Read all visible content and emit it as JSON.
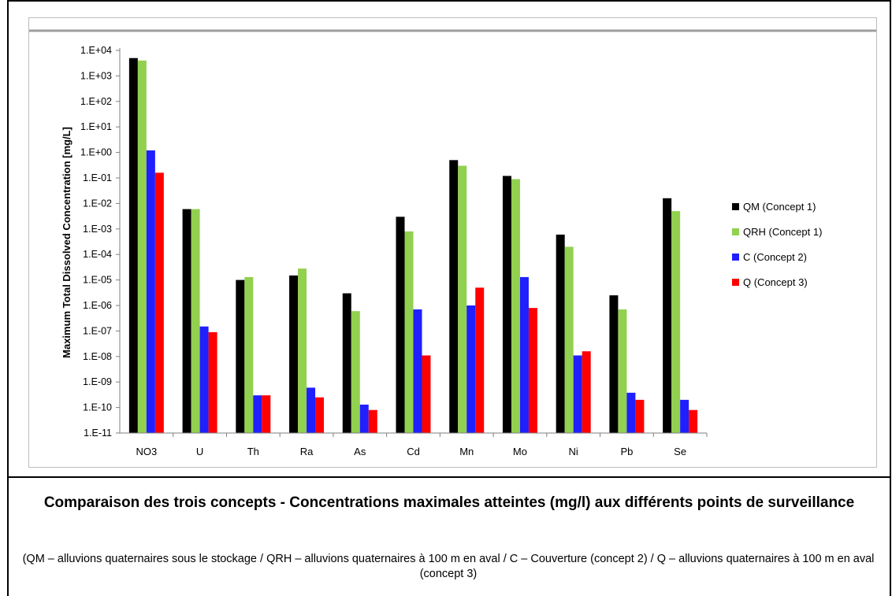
{
  "chart_data": {
    "type": "bar",
    "scale": "log",
    "ylabel": "Maximum Total Dissolved Concentration [mg/L]",
    "ylim": [
      1e-11,
      10000.0
    ],
    "yticks": [
      "1.E+04",
      "1.E+03",
      "1.E+02",
      "1.E+01",
      "1.E+00",
      "1.E-01",
      "1.E-02",
      "1.E-03",
      "1.E-04",
      "1.E-05",
      "1.E-06",
      "1.E-07",
      "1.E-08",
      "1.E-09",
      "1.E-10",
      "1.E-11"
    ],
    "categories": [
      "NO3",
      "U",
      "Th",
      "Ra",
      "As",
      "Cd",
      "Mn",
      "Mo",
      "Ni",
      "Pb",
      "Se"
    ],
    "legend_position": "right",
    "grid": false,
    "series": [
      {
        "name": "QM (Concept 1)",
        "color": "#000000",
        "values": [
          5000,
          0.006,
          1e-05,
          1.5e-05,
          3e-06,
          0.003,
          0.5,
          0.12,
          0.0006,
          2.5e-06,
          0.016
        ]
      },
      {
        "name": "QRH (Concept 1)",
        "color": "#92d050",
        "values": [
          4000,
          0.006,
          1.3e-05,
          2.8e-05,
          6e-07,
          0.0008,
          0.3,
          0.09,
          0.0002,
          7e-07,
          0.005
        ]
      },
      {
        "name": "C (Concept 2)",
        "color": "#1f1fff",
        "values": [
          1.2,
          1.5e-07,
          3e-10,
          6e-10,
          1.3e-10,
          7e-07,
          1e-06,
          1.3e-05,
          1.1e-08,
          3.8e-10,
          2e-10
        ]
      },
      {
        "name": "Q (Concept 3)",
        "color": "#ff0000",
        "values": [
          0.16,
          9e-08,
          3e-10,
          2.5e-10,
          8e-11,
          1.1e-08,
          5e-06,
          8e-07,
          1.6e-08,
          2e-10,
          8e-11
        ]
      }
    ]
  },
  "caption": {
    "title": "Comparaison des trois concepts - Concentrations maximales atteintes (mg/l) aux différents points de surveillance",
    "note": "(QM – alluvions quaternaires sous le stockage / QRH – alluvions quaternaires à 100 m en aval / C – Couverture (concept 2)  / Q – alluvions quaternaires à 100 m en aval (concept 3)"
  }
}
